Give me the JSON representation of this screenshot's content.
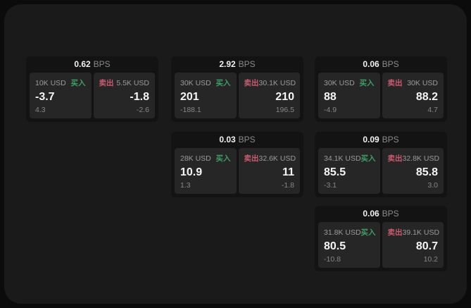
{
  "colors": {
    "bg_outer": "#0b0b0b",
    "bg_panel": "#1a1a1a",
    "bg_card": "#131313",
    "bg_subpanel": "#262626",
    "buy": "#3d9f64",
    "sell": "#cb5a6e"
  },
  "labels": {
    "bps": "BPS",
    "buy": "买入",
    "sell": "卖出"
  },
  "cards": [
    {
      "bps": "0.62",
      "buy": {
        "amount": "10K USD",
        "value": "-3.7",
        "delta": "4.3"
      },
      "sell": {
        "amount": "5.5K USD",
        "value": "-1.8",
        "delta": "-2.6"
      }
    },
    {
      "bps": "2.92",
      "buy": {
        "amount": "30K USD",
        "value": "201",
        "delta": "-188.1"
      },
      "sell": {
        "amount": "30.1K USD",
        "value": "210",
        "delta": "196.5"
      }
    },
    {
      "bps": "0.06",
      "buy": {
        "amount": "30K USD",
        "value": "88",
        "delta": "-4.9"
      },
      "sell": {
        "amount": "30K USD",
        "value": "88.2",
        "delta": "4.7"
      }
    },
    {
      "bps": "0.03",
      "buy": {
        "amount": "28K USD",
        "value": "10.9",
        "delta": "1.3"
      },
      "sell": {
        "amount": "32.6K USD",
        "value": "11",
        "delta": "-1.8"
      }
    },
    {
      "bps": "0.09",
      "buy": {
        "amount": "34.1K USD",
        "value": "85.5",
        "delta": "-3.1"
      },
      "sell": {
        "amount": "32.8K USD",
        "value": "85.8",
        "delta": "3.0"
      }
    },
    {
      "bps": "0.06",
      "buy": {
        "amount": "31.8K USD",
        "value": "80.5",
        "delta": "-10.8"
      },
      "sell": {
        "amount": "39.1K USD",
        "value": "80.7",
        "delta": "10.2"
      }
    }
  ]
}
